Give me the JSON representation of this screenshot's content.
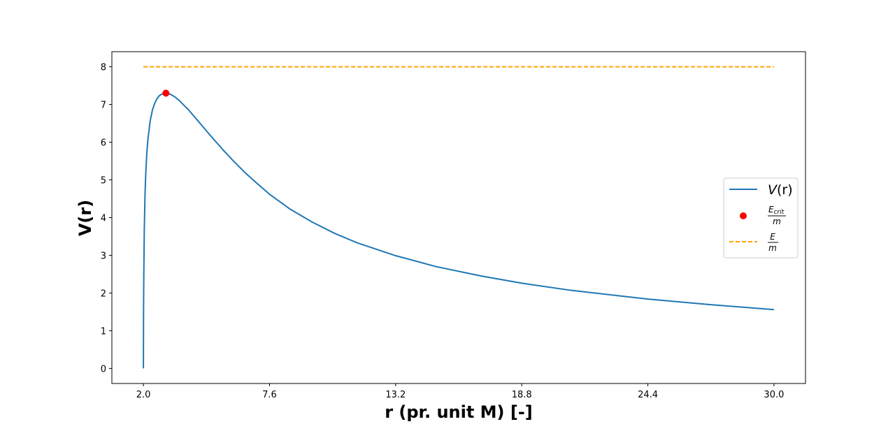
{
  "chart_data": {
    "type": "line",
    "title": "",
    "xlabel": "r (pr. unit M) [-]",
    "ylabel": "V(r)",
    "xlim": [
      0.6,
      31.4
    ],
    "ylim": [
      -0.4,
      8.4
    ],
    "x_ticks": [
      2.0,
      7.6,
      13.2,
      18.8,
      24.4,
      30.0
    ],
    "x_tick_labels": [
      "2.0",
      "7.6",
      "13.2",
      "18.8",
      "24.4",
      "30.0"
    ],
    "y_ticks": [
      0,
      1,
      2,
      3,
      4,
      5,
      6,
      7,
      8
    ],
    "y_tick_labels": [
      "0",
      "1",
      "2",
      "3",
      "4",
      "5",
      "6",
      "7",
      "8"
    ],
    "grid": false,
    "legend_position": "center-right",
    "series": [
      {
        "name": "V(r)",
        "kind": "line",
        "color": "#1f77b4",
        "x": [
          2.0,
          2.005,
          2.01,
          2.02,
          2.04,
          2.07,
          2.1,
          2.15,
          2.2,
          2.3,
          2.4,
          2.5,
          2.6,
          2.7,
          2.8,
          2.9,
          3.0,
          3.1,
          3.2,
          3.4,
          3.6,
          3.8,
          4.0,
          4.5,
          5.0,
          5.5,
          6.0,
          6.5,
          7.0,
          7.6,
          8.5,
          9.5,
          10.5,
          11.5,
          13.2,
          15.0,
          17.0,
          18.8,
          21.0,
          24.4,
          27.0,
          30.0
        ],
        "y": [
          0.0,
          1.3,
          1.87,
          2.64,
          3.69,
          4.56,
          5.1,
          5.7,
          6.07,
          6.56,
          6.85,
          7.03,
          7.15,
          7.23,
          7.27,
          7.29,
          7.3,
          7.29,
          7.27,
          7.2,
          7.1,
          6.98,
          6.86,
          6.51,
          6.16,
          5.82,
          5.5,
          5.2,
          4.93,
          4.62,
          4.23,
          3.88,
          3.58,
          3.33,
          2.99,
          2.7,
          2.45,
          2.26,
          2.07,
          1.84,
          1.7,
          1.56
        ]
      },
      {
        "name": "E_crit / m",
        "kind": "point",
        "color": "#ff0000",
        "x": [
          3.0
        ],
        "y": [
          7.3
        ]
      },
      {
        "name": "E / m",
        "kind": "dashed-line",
        "color": "#ffa500",
        "x": [
          2.0,
          30.0
        ],
        "y": [
          8.0,
          8.0
        ]
      }
    ],
    "legend": {
      "entry1_main": "V",
      "entry1_arg": "(r)",
      "entry2_num": "E",
      "entry2_sub": "crit",
      "entry2_den": "m",
      "entry3_num": "E",
      "entry3_den": "m"
    }
  }
}
